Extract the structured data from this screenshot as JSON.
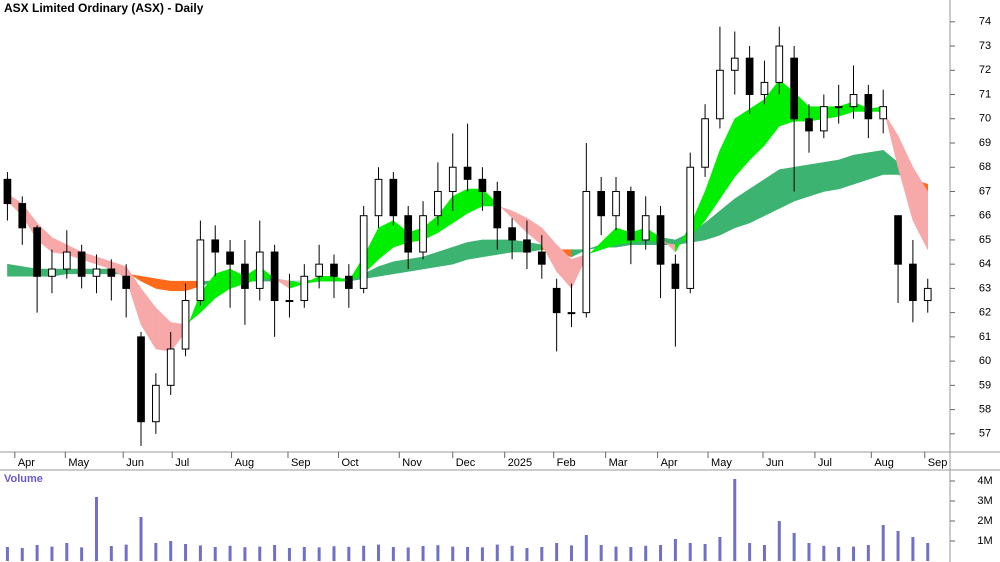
{
  "chart_data": [
    {
      "type": "candlestick",
      "title": "ASX Limited Ordinary (ASX) - Daily",
      "xlim": [
        0,
        64
      ],
      "xticks": [
        {
          "value": 1.0,
          "label": "Apr"
        },
        {
          "value": 4.4,
          "label": "May"
        },
        {
          "value": 8.3,
          "label": "Jun"
        },
        {
          "value": 11.6,
          "label": "Jul"
        },
        {
          "value": 15.6,
          "label": "Aug"
        },
        {
          "value": 19.4,
          "label": "Sep"
        },
        {
          "value": 22.8,
          "label": "Oct"
        },
        {
          "value": 26.9,
          "label": "Nov"
        },
        {
          "value": 30.5,
          "label": "Dec"
        },
        {
          "value": 34.0,
          "label": "2025"
        },
        {
          "value": 37.3,
          "label": "Feb"
        },
        {
          "value": 40.8,
          "label": "Mar"
        },
        {
          "value": 44.3,
          "label": "Apr"
        },
        {
          "value": 47.7,
          "label": "May"
        },
        {
          "value": 51.4,
          "label": "Jun"
        },
        {
          "value": 54.9,
          "label": "Jul"
        },
        {
          "value": 58.7,
          "label": "Aug"
        },
        {
          "value": 62.3,
          "label": "Sep"
        }
      ],
      "ylim": [
        56.25,
        74.9
      ],
      "yticks": [
        57,
        58,
        59,
        60,
        61,
        62,
        63,
        64,
        65,
        66,
        67,
        68,
        69,
        70,
        71,
        72,
        73,
        74
      ],
      "up_color": "#ffffff",
      "down_color": "#000000",
      "open": [
        67.5,
        66.5,
        65.5,
        63.5,
        63.8,
        64.5,
        63.5,
        63.8,
        63.5,
        61.0,
        57.5,
        59.0,
        60.5,
        62.5,
        65.0,
        64.5,
        64.0,
        63.0,
        64.5,
        62.5,
        62.5,
        63.5,
        64.0,
        63.5,
        63.0,
        66.0,
        67.5,
        66.0,
        64.5,
        66.0,
        67.0,
        68.0,
        67.5,
        67.0,
        65.5,
        65.0,
        64.5,
        63.0,
        62.0,
        62.0,
        67.0,
        66.0,
        67.0,
        65.0,
        66.0,
        64.0,
        63.0,
        68.0,
        70.0,
        72.0,
        72.5,
        71.0,
        71.5,
        72.5,
        70.0,
        69.5,
        70.5,
        70.5,
        71.0,
        70.0,
        66.0,
        64.0,
        62.5
      ],
      "high": [
        67.8,
        66.8,
        65.6,
        64.6,
        65.4,
        64.8,
        64.4,
        64.2,
        64.0,
        61.2,
        59.5,
        61.2,
        63.2,
        65.8,
        65.6,
        65.0,
        65.0,
        65.8,
        64.8,
        63.6,
        64.0,
        64.8,
        64.4,
        64.0,
        66.4,
        68.0,
        67.8,
        66.4,
        66.6,
        68.2,
        69.4,
        69.8,
        68.0,
        67.4,
        65.9,
        65.8,
        65.2,
        63.4,
        63.2,
        69.0,
        67.6,
        67.6,
        67.2,
        66.8,
        66.4,
        64.4,
        68.6,
        70.6,
        73.8,
        73.6,
        73.0,
        72.4,
        73.8,
        73.0,
        70.6,
        71.0,
        71.4,
        72.2,
        71.4,
        71.2,
        66.0,
        65.0,
        63.4
      ],
      "low": [
        65.8,
        64.8,
        62.0,
        62.8,
        63.4,
        63.0,
        62.8,
        62.5,
        61.8,
        56.5,
        57.0,
        58.6,
        60.2,
        62.3,
        63.5,
        62.2,
        61.5,
        62.5,
        61.0,
        61.8,
        62.2,
        63.0,
        62.6,
        62.2,
        62.8,
        65.5,
        65.6,
        63.8,
        64.2,
        65.6,
        66.2,
        67.0,
        66.2,
        64.6,
        64.2,
        63.8,
        63.4,
        60.4,
        61.4,
        61.8,
        65.2,
        65.4,
        64.0,
        64.6,
        62.6,
        60.6,
        62.8,
        67.6,
        69.6,
        71.0,
        70.2,
        70.6,
        71.0,
        67.0,
        68.6,
        69.2,
        69.8,
        70.0,
        69.2,
        69.4,
        62.4,
        61.6,
        62.0
      ],
      "close": [
        66.5,
        65.5,
        63.5,
        63.8,
        64.5,
        63.5,
        63.8,
        63.5,
        63.0,
        57.5,
        59.0,
        60.5,
        62.5,
        65.0,
        64.5,
        64.0,
        63.0,
        64.5,
        62.5,
        62.5,
        63.5,
        64.0,
        63.5,
        63.0,
        66.0,
        67.5,
        66.0,
        64.5,
        66.0,
        67.0,
        68.0,
        67.5,
        67.0,
        65.5,
        65.0,
        64.5,
        64.0,
        62.0,
        62.0,
        67.0,
        66.0,
        67.0,
        65.0,
        66.0,
        64.0,
        63.0,
        68.0,
        70.0,
        72.0,
        72.5,
        71.0,
        71.5,
        73.0,
        70.0,
        69.5,
        70.5,
        70.5,
        71.0,
        70.0,
        70.5,
        64.0,
        62.5,
        63.0
      ],
      "ribbons": [
        {
          "up_color": "#3cb371",
          "down_color": "#ff6a1a",
          "fast": [
            64.0,
            63.9,
            63.8,
            63.8,
            63.8,
            63.8,
            63.8,
            63.8,
            63.7,
            63.3,
            63.0,
            62.9,
            62.9,
            63.1,
            63.3,
            63.4,
            63.4,
            63.5,
            63.4,
            63.3,
            63.3,
            63.4,
            63.4,
            63.4,
            63.6,
            63.9,
            64.1,
            64.2,
            64.3,
            64.5,
            64.7,
            64.9,
            65.0,
            65.0,
            65.0,
            64.9,
            64.8,
            64.5,
            64.3,
            64.6,
            64.8,
            65.0,
            65.0,
            65.1,
            65.1,
            65.0,
            65.3,
            65.7,
            66.2,
            66.7,
            67.1,
            67.5,
            67.9,
            68.0,
            68.1,
            68.2,
            68.3,
            68.5,
            68.6,
            68.7,
            68.2,
            67.6,
            67.0
          ],
          "slow": [
            63.5,
            63.5,
            63.5,
            63.5,
            63.6,
            63.6,
            63.6,
            63.6,
            63.6,
            63.5,
            63.4,
            63.3,
            63.3,
            63.3,
            63.3,
            63.3,
            63.3,
            63.3,
            63.3,
            63.3,
            63.3,
            63.3,
            63.3,
            63.3,
            63.4,
            63.5,
            63.6,
            63.7,
            63.8,
            63.9,
            64.0,
            64.2,
            64.3,
            64.4,
            64.5,
            64.5,
            64.6,
            64.6,
            64.6,
            64.6,
            64.7,
            64.7,
            64.8,
            64.8,
            64.8,
            64.8,
            64.9,
            65.0,
            65.2,
            65.5,
            65.7,
            66.0,
            66.3,
            66.6,
            66.8,
            67.0,
            67.1,
            67.3,
            67.5,
            67.7,
            67.7,
            67.5,
            67.3
          ]
        },
        {
          "up_color": "#00ee00",
          "down_color": "#f7a8a8",
          "fast": [
            66.6,
            66.0,
            65.0,
            64.5,
            64.4,
            64.2,
            64.0,
            63.8,
            63.4,
            61.5,
            60.5,
            60.4,
            61.2,
            62.8,
            63.6,
            63.8,
            63.5,
            63.9,
            63.4,
            63.0,
            63.2,
            63.5,
            63.5,
            63.3,
            64.3,
            65.5,
            65.8,
            65.3,
            65.5,
            66.0,
            66.8,
            67.1,
            67.1,
            66.5,
            65.9,
            65.3,
            64.8,
            63.7,
            63.0,
            64.3,
            64.9,
            65.5,
            65.3,
            65.5,
            65.1,
            64.5,
            65.6,
            67.0,
            68.7,
            70.0,
            70.4,
            70.8,
            71.6,
            71.1,
            70.5,
            70.5,
            70.5,
            70.7,
            70.4,
            70.5,
            68.0,
            65.8,
            64.6
          ],
          "slow": [
            66.9,
            66.5,
            65.7,
            65.1,
            64.8,
            64.5,
            64.3,
            64.1,
            63.9,
            63.0,
            62.2,
            61.6,
            61.5,
            62.0,
            62.6,
            63.0,
            63.2,
            63.4,
            63.4,
            63.3,
            63.2,
            63.3,
            63.3,
            63.3,
            63.6,
            64.2,
            64.7,
            64.9,
            65.0,
            65.3,
            65.7,
            66.1,
            66.4,
            66.4,
            66.2,
            65.9,
            65.5,
            64.8,
            64.2,
            64.4,
            64.6,
            64.8,
            64.9,
            65.0,
            64.9,
            64.8,
            65.1,
            65.8,
            66.7,
            67.6,
            68.3,
            68.9,
            69.7,
            69.9,
            69.9,
            70.0,
            70.1,
            70.3,
            70.3,
            70.3,
            69.3,
            68.0,
            67.0
          ]
        }
      ]
    },
    {
      "type": "bar",
      "title": "Volume",
      "color": "#7070c8",
      "values": [
        700000,
        650000,
        800000,
        720000,
        900000,
        680000,
        3200000,
        750000,
        820000,
        2200000,
        900000,
        1000000,
        850000,
        780000,
        700000,
        760000,
        690000,
        720000,
        800000,
        650000,
        700000,
        680000,
        740000,
        710000,
        760000,
        820000,
        700000,
        680000,
        750000,
        790000,
        720000,
        700000,
        680000,
        820000,
        760000,
        650000,
        700000,
        900000,
        780000,
        1300000,
        800000,
        720000,
        700000,
        760000,
        800000,
        1100000,
        900000,
        850000,
        1200000,
        4100000,
        900000,
        800000,
        2000000,
        1400000,
        900000,
        760000,
        700000,
        720000,
        800000,
        1800000,
        1500000,
        1200000,
        900000
      ],
      "ylim": [
        0,
        4500000
      ],
      "yticks": [
        {
          "value": 1000000,
          "label": "1M"
        },
        {
          "value": 2000000,
          "label": "2M"
        },
        {
          "value": 3000000,
          "label": "3M"
        },
        {
          "value": 4000000,
          "label": "4M"
        }
      ]
    }
  ]
}
